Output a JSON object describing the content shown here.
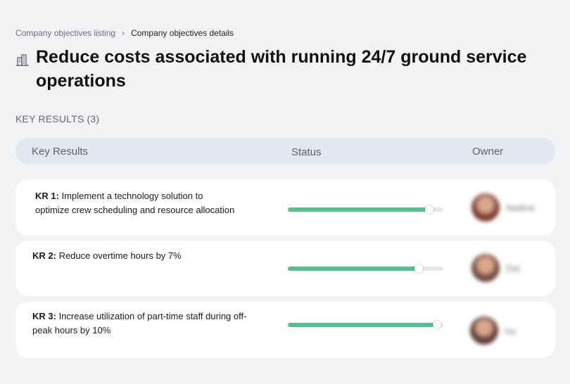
{
  "breadcrumb": {
    "parent": "Company objectives listing",
    "separator": "›",
    "current": "Company objectives details"
  },
  "page": {
    "title": "Reduce costs associated with running 24/7 ground service operations",
    "icon": "building-icon"
  },
  "section": {
    "label": "KEY RESULTS (3)"
  },
  "table": {
    "headers": {
      "key_results": "Key Results",
      "status": "Status",
      "owner": "Owner"
    },
    "rows": [
      {
        "id": "KR 1:",
        "text": " Implement a technology solution to optimize crew scheduling and resource allocation",
        "progress_percent": 91,
        "owner_name": "Nadine",
        "avatar_color": "#7a3a2e"
      },
      {
        "id": "KR 2:",
        "text": " Reduce overtime hours by 7%",
        "progress_percent": 84,
        "owner_name": "Dai",
        "avatar_color": "#6e4a3c"
      },
      {
        "id": "KR 3:",
        "text": " Increase utilization of part-time staff during off-peak hours by 10%",
        "progress_percent": 96,
        "owner_name": "Ivy",
        "avatar_color": "#5e3b36"
      }
    ]
  },
  "colors": {
    "progress_fill": "#54c08b",
    "progress_track": "#e6e6e6",
    "header_bg": "#e3e8ef",
    "page_bg": "#f2f3f5"
  }
}
